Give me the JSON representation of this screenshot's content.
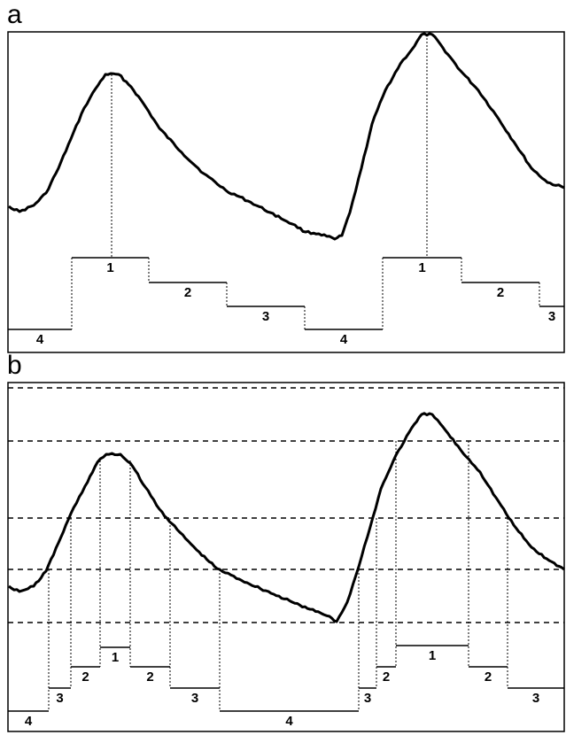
{
  "panels": [
    {
      "letter": "a",
      "pulses": [
        {
          "level": "4"
        },
        {
          "level": "1"
        },
        {
          "level": "2"
        },
        {
          "level": "3"
        },
        {
          "level": "4"
        },
        {
          "level": "1"
        },
        {
          "level": "2"
        },
        {
          "level": "3"
        }
      ]
    },
    {
      "letter": "b",
      "pulses": [
        {
          "level": "4"
        },
        {
          "level": "3"
        },
        {
          "level": "2"
        },
        {
          "level": "1"
        },
        {
          "level": "2"
        },
        {
          "level": "3"
        },
        {
          "level": "4"
        },
        {
          "level": "3"
        },
        {
          "level": "2"
        },
        {
          "level": "1"
        },
        {
          "level": "2"
        },
        {
          "level": "3"
        }
      ]
    }
  ],
  "colors": {
    "line": "#000000",
    "background": "#ffffff"
  }
}
